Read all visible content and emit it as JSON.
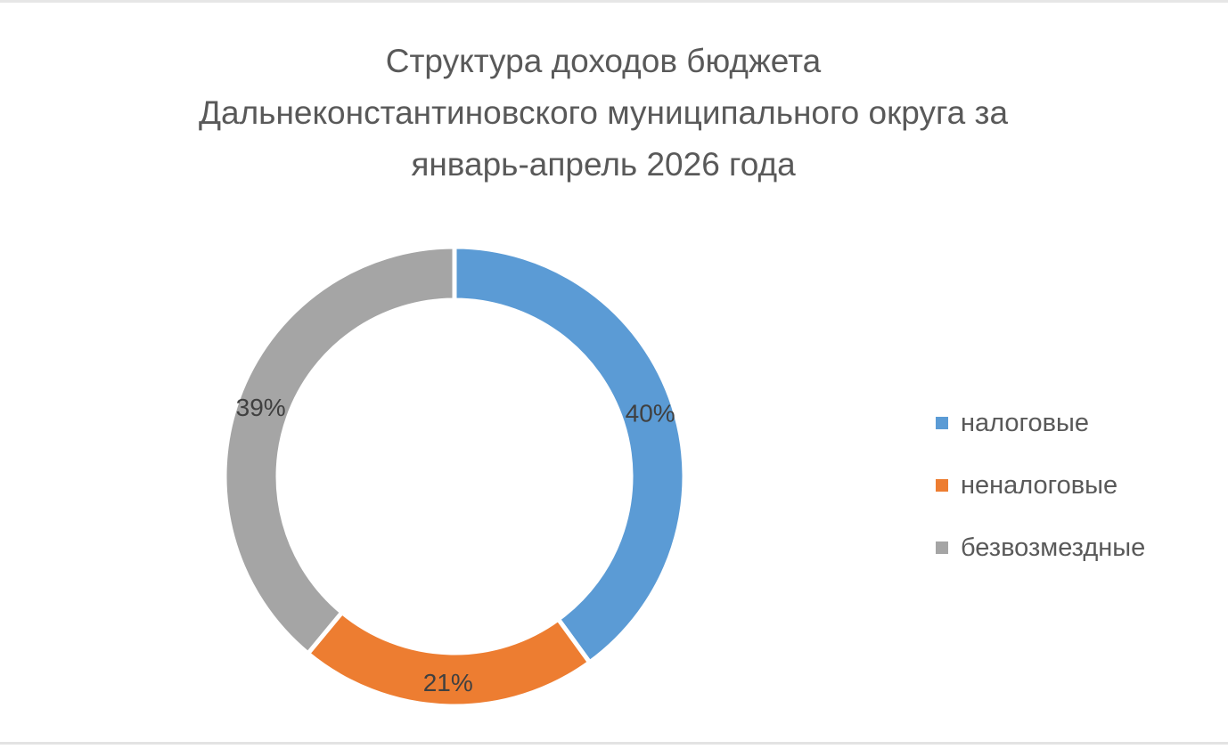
{
  "colors": {
    "background": "#ffffff",
    "text": "#595959",
    "label_text": "#404040"
  },
  "chart_data": {
    "type": "pie",
    "subtype": "doughnut",
    "title_lines": [
      "Структура доходов бюджета",
      "Дальнеконстантиновского муниципального округа за",
      "январь-апрель 2026 года"
    ],
    "categories": [
      "налоговые",
      "неналоговые",
      "безвозмездные"
    ],
    "values": [
      40,
      21,
      39
    ],
    "data_labels": [
      "40%",
      "21%",
      "39%"
    ],
    "colors": [
      "#5b9bd5",
      "#ed7d31",
      "#a5a5a5"
    ],
    "legend_position": "right"
  }
}
